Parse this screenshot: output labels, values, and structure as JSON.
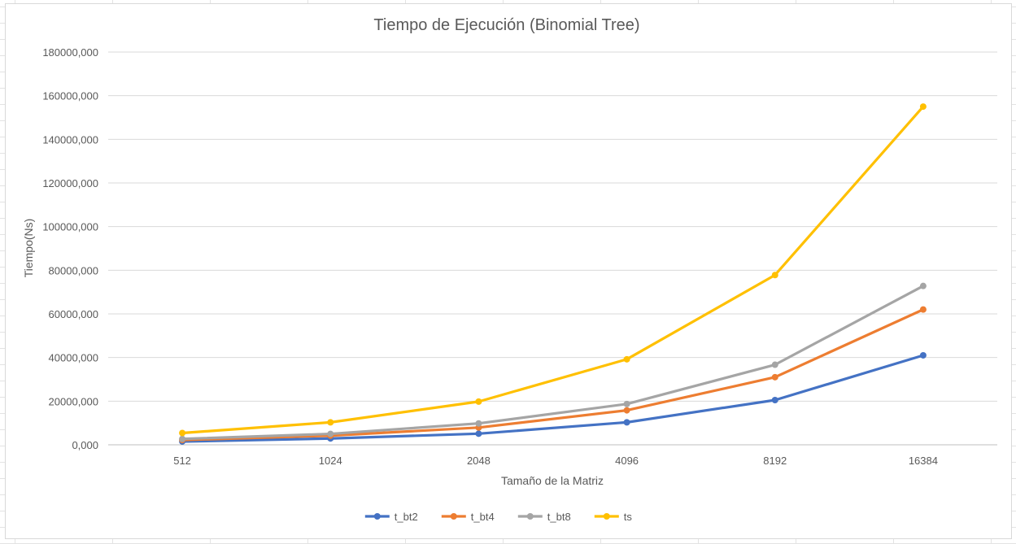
{
  "chart_data": {
    "type": "line",
    "title": "Tiempo de Ejecución (Binomial Tree)",
    "xlabel": "Tamaño de la Matriz",
    "ylabel": "Tiempo(Ns)",
    "categories": [
      "512",
      "1024",
      "2048",
      "4096",
      "8192",
      "16384"
    ],
    "ylim": [
      0,
      180000
    ],
    "yticks": [
      0,
      20000,
      40000,
      60000,
      80000,
      100000,
      120000,
      140000,
      160000,
      180000
    ],
    "ytick_labels": [
      "0,000",
      "20000,000",
      "40000,000",
      "60000,000",
      "80000,000",
      "100000,000",
      "120000,000",
      "140000,000",
      "160000,000",
      "180000,000"
    ],
    "grid": true,
    "legend_position": "bottom",
    "series": [
      {
        "name": "t_bt2",
        "color": "#4472C4",
        "values": [
          1500,
          2900,
          5100,
          10300,
          20500,
          41000
        ]
      },
      {
        "name": "t_bt4",
        "color": "#ED7D31",
        "values": [
          2200,
          4200,
          7900,
          15800,
          31000,
          62000
        ]
      },
      {
        "name": "t_bt8",
        "color": "#A5A5A5",
        "values": [
          2700,
          5000,
          9800,
          18700,
          36700,
          72800
        ]
      },
      {
        "name": "ts",
        "color": "#FFC000",
        "values": [
          5400,
          10300,
          19800,
          39200,
          77800,
          155000
        ]
      }
    ]
  }
}
